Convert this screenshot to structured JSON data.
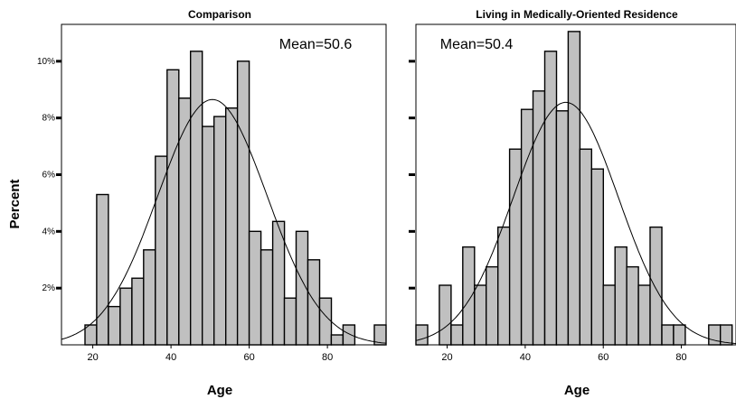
{
  "figure": {
    "ylabel": "Percent",
    "y_ticks": [
      {
        "value": 2,
        "label": "2%"
      },
      {
        "value": 4,
        "label": "4%"
      },
      {
        "value": 6,
        "label": "6%"
      },
      {
        "value": 8,
        "label": "8%"
      },
      {
        "value": 10,
        "label": "10%"
      }
    ],
    "bar_fill": "#c0c0c0",
    "bar_stroke": "#000000"
  },
  "chart_data": [
    {
      "type": "bar",
      "title": "Comparison",
      "xlabel": "Age",
      "ylabel": "Percent",
      "annotation": "Mean=50.6",
      "xlim": [
        12,
        95
      ],
      "ylim": [
        0,
        11.3
      ],
      "x_ticks": [
        20,
        40,
        60,
        80
      ],
      "bin_width": 3,
      "bins": [
        {
          "start": 18,
          "value": 0.7
        },
        {
          "start": 21,
          "value": 5.3
        },
        {
          "start": 24,
          "value": 1.35
        },
        {
          "start": 27,
          "value": 2.0
        },
        {
          "start": 30,
          "value": 2.35
        },
        {
          "start": 33,
          "value": 3.35
        },
        {
          "start": 36,
          "value": 6.65
        },
        {
          "start": 39,
          "value": 9.7
        },
        {
          "start": 42,
          "value": 8.7
        },
        {
          "start": 45,
          "value": 10.35
        },
        {
          "start": 48,
          "value": 7.7
        },
        {
          "start": 51,
          "value": 8.05
        },
        {
          "start": 54,
          "value": 8.35
        },
        {
          "start": 57,
          "value": 10.0
        },
        {
          "start": 60,
          "value": 4.0
        },
        {
          "start": 63,
          "value": 3.35
        },
        {
          "start": 66,
          "value": 4.35
        },
        {
          "start": 69,
          "value": 1.65
        },
        {
          "start": 72,
          "value": 4.0
        },
        {
          "start": 75,
          "value": 3.0
        },
        {
          "start": 78,
          "value": 1.65
        },
        {
          "start": 81,
          "value": 0.35
        },
        {
          "start": 84,
          "value": 0.7
        },
        {
          "start": 92,
          "value": 0.7
        }
      ],
      "normal_curve": {
        "mean": 50.6,
        "sd": 14,
        "peak": 8.65
      }
    },
    {
      "type": "bar",
      "title": "Living in Medically-Oriented Residence",
      "xlabel": "Age",
      "ylabel": "Percent",
      "annotation": "Mean=50.4",
      "xlim": [
        12,
        94
      ],
      "ylim": [
        0,
        11.3
      ],
      "x_ticks": [
        20,
        40,
        60,
        80
      ],
      "bin_width": 3,
      "bins": [
        {
          "start": 12,
          "value": 0.7
        },
        {
          "start": 18,
          "value": 2.1
        },
        {
          "start": 21,
          "value": 0.7
        },
        {
          "start": 24,
          "value": 3.45
        },
        {
          "start": 27,
          "value": 2.1
        },
        {
          "start": 30,
          "value": 2.75
        },
        {
          "start": 33,
          "value": 4.15
        },
        {
          "start": 36,
          "value": 6.9
        },
        {
          "start": 39,
          "value": 8.3
        },
        {
          "start": 42,
          "value": 8.95
        },
        {
          "start": 45,
          "value": 10.35
        },
        {
          "start": 48,
          "value": 8.25
        },
        {
          "start": 51,
          "value": 11.05
        },
        {
          "start": 54,
          "value": 6.9
        },
        {
          "start": 57,
          "value": 6.2
        },
        {
          "start": 60,
          "value": 2.1
        },
        {
          "start": 63,
          "value": 3.45
        },
        {
          "start": 66,
          "value": 2.75
        },
        {
          "start": 69,
          "value": 2.1
        },
        {
          "start": 72,
          "value": 4.15
        },
        {
          "start": 75,
          "value": 0.7
        },
        {
          "start": 78,
          "value": 0.7
        },
        {
          "start": 87,
          "value": 0.7
        },
        {
          "start": 90,
          "value": 0.7
        }
      ],
      "normal_curve": {
        "mean": 50.4,
        "sd": 13.5,
        "peak": 8.55
      }
    }
  ]
}
